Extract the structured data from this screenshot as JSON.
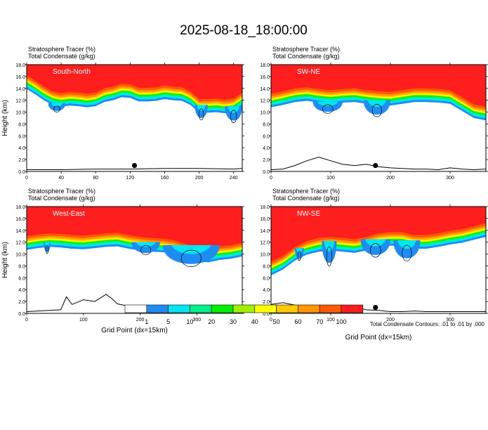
{
  "figure": {
    "title": "2025-08-18_18:00:00",
    "footnote": "Total Condensate Contours: .01 to .01 by .000"
  },
  "colors": {
    "levels": [
      "#ffffff",
      "#1e8cf0",
      "#00e6f0",
      "#00f08c",
      "#00f000",
      "#a0f000",
      "#ffff00",
      "#ffc800",
      "#ff9600",
      "#ff5a00",
      "#ff1e1e"
    ],
    "terrain": "#000000"
  },
  "chart_data": [
    {
      "type": "area",
      "panel": "South-North",
      "title_line1": "Stratosphere Tracer   (%)",
      "title_line2": "Total Condensate   (g/kg)",
      "ylabel": "Height (km)",
      "xlabel": "",
      "xlim": [
        0,
        250
      ],
      "ylim": [
        0,
        18
      ],
      "x_ticks": [
        "0",
        "40",
        "80",
        "120",
        "160",
        "200",
        "240"
      ],
      "y_ticks": [
        "0.0",
        "2.0",
        "4.0",
        "6.0",
        "8.0",
        "10.0",
        "12.0",
        "14.0",
        "16.0",
        "18.0"
      ],
      "tropopause_x": [
        0,
        10,
        20,
        30,
        40,
        50,
        60,
        70,
        80,
        90,
        100,
        110,
        120,
        130,
        140,
        150,
        160,
        170,
        180,
        190,
        200,
        210,
        220,
        230,
        240,
        250
      ],
      "tropopause_y": [
        15.5,
        14.6,
        13.6,
        12.8,
        12.5,
        12.7,
        12.6,
        12.4,
        12.6,
        13.3,
        13.6,
        14.1,
        14.0,
        13.4,
        13.4,
        13.5,
        13.8,
        13.6,
        13.5,
        12.8,
        11.5,
        11.5,
        11.6,
        11.4,
        11.6,
        12.6
      ],
      "cloud_blobs": [
        {
          "x0": 25,
          "x1": 45,
          "ytop": 11.5,
          "ybot": 10.0
        },
        {
          "x0": 195,
          "x1": 210,
          "ytop": 11.2,
          "ybot": 8.5
        },
        {
          "x0": 230,
          "x1": 250,
          "ytop": 11.0,
          "ybot": 8.0
        }
      ],
      "terrain_x": [
        0,
        40,
        80,
        120,
        160,
        200,
        240,
        250
      ],
      "terrain_y": [
        0.3,
        0.3,
        0.4,
        0.4,
        0.5,
        0.5,
        0.4,
        0.5
      ],
      "marker_x": 125,
      "marker_y": 1.0
    },
    {
      "type": "area",
      "panel": "SW-NE",
      "title_line1": "Stratosphere Tracer   (%)",
      "title_line2": "Total Condensate   (g/kg)",
      "ylabel": "",
      "xlabel": "",
      "xlim": [
        0,
        360
      ],
      "ylim": [
        0,
        18
      ],
      "x_ticks": [
        "0",
        "100",
        "200",
        "300"
      ],
      "y_ticks": [
        "0.0",
        "2.0",
        "4.0",
        "6.0",
        "8.0",
        "10.0",
        "12.0",
        "14.0",
        "16.0",
        "18.0"
      ],
      "tropopause_x": [
        0,
        20,
        40,
        60,
        80,
        100,
        120,
        140,
        160,
        180,
        200,
        220,
        240,
        260,
        280,
        300,
        320,
        340,
        360
      ],
      "tropopause_y": [
        12.4,
        12.8,
        13.3,
        13.5,
        13.2,
        13.0,
        13.2,
        13.3,
        13.0,
        12.8,
        12.7,
        13.0,
        13.3,
        13.3,
        13.2,
        13.0,
        11.8,
        10.6,
        10.2
      ],
      "cloud_blobs": [
        {
          "x0": 70,
          "x1": 120,
          "ytop": 11.8,
          "ybot": 9.7
        },
        {
          "x0": 155,
          "x1": 200,
          "ytop": 12.0,
          "ybot": 9.0
        }
      ],
      "terrain_x": [
        0,
        20,
        40,
        60,
        80,
        100,
        120,
        140,
        160,
        180,
        200,
        220,
        240,
        260,
        280,
        300,
        320,
        340,
        360
      ],
      "terrain_y": [
        0.3,
        0.4,
        1.0,
        1.8,
        2.4,
        1.8,
        1.2,
        1.0,
        1.2,
        0.8,
        0.6,
        0.5,
        0.4,
        0.4,
        0.3,
        0.6,
        0.4,
        0.3,
        0.4
      ],
      "marker_x": 175,
      "marker_y": 1.0
    },
    {
      "type": "area",
      "panel": "West-East",
      "title_line1": "Stratosphere Tracer   (%)",
      "title_line2": "Total Condensate   (g/kg)",
      "ylabel": "Height (km)",
      "xlabel": "Grid Point (dx=15km)",
      "xlim": [
        0,
        380
      ],
      "ylim": [
        0,
        18
      ],
      "x_ticks": [
        "0",
        "100",
        "200",
        "300"
      ],
      "y_ticks": [
        "0.0",
        "2.0",
        "4.0",
        "6.0",
        "8.0",
        "10.0",
        "12.0",
        "14.0",
        "16.0",
        "18.0"
      ],
      "tropopause_x": [
        0,
        20,
        40,
        60,
        80,
        100,
        120,
        140,
        160,
        180,
        200,
        220,
        240,
        260,
        280,
        300,
        320,
        340,
        360,
        380
      ],
      "tropopause_y": [
        12.3,
        12.6,
        12.8,
        12.7,
        12.5,
        12.4,
        12.6,
        12.8,
        12.9,
        12.5,
        12.2,
        12.0,
        11.9,
        11.6,
        11.0,
        10.4,
        10.2,
        10.6,
        10.8,
        11.2
      ],
      "cloud_blobs": [
        {
          "x0": 185,
          "x1": 235,
          "ytop": 12.0,
          "ybot": 9.8
        },
        {
          "x0": 240,
          "x1": 340,
          "ytop": 11.5,
          "ybot": 7.5
        },
        {
          "x0": 30,
          "x1": 42,
          "ytop": 12.0,
          "ybot": 10.0
        }
      ],
      "terrain_x": [
        0,
        20,
        40,
        60,
        70,
        80,
        100,
        120,
        140,
        150,
        160,
        180,
        200,
        220,
        240,
        260,
        280,
        300,
        320,
        340,
        380
      ],
      "terrain_y": [
        0.3,
        0.4,
        0.5,
        0.6,
        2.8,
        1.5,
        2.3,
        2.0,
        3.2,
        2.5,
        1.6,
        1.2,
        1.1,
        0.8,
        0.6,
        0.5,
        0.6,
        0.3,
        0.3,
        0.3,
        0.3
      ],
      "marker_x": 187,
      "marker_y": 1.0
    },
    {
      "type": "area",
      "panel": "NW-SE",
      "title_line1": "Stratosphere Tracer   (%)",
      "title_line2": "Total Condensate   (g/kg)",
      "ylabel": "",
      "xlabel": "Grid Point (dx=15km)",
      "xlim": [
        0,
        360
      ],
      "ylim": [
        0,
        18
      ],
      "x_ticks": [
        "0",
        "100",
        "200",
        "300"
      ],
      "y_ticks": [
        "0.0",
        "2.0",
        "4.0",
        "6.0",
        "8.0",
        "10.0",
        "12.0",
        "14.0",
        "16.0",
        "18.0"
      ],
      "tropopause_x": [
        0,
        20,
        40,
        60,
        80,
        100,
        120,
        140,
        160,
        180,
        200,
        220,
        240,
        260,
        280,
        300,
        320,
        340,
        360
      ],
      "tropopause_y": [
        8.0,
        9.0,
        10.5,
        11.5,
        12.0,
        12.2,
        12.0,
        11.8,
        12.2,
        12.8,
        13.0,
        13.0,
        12.5,
        12.5,
        12.8,
        13.2,
        13.5,
        14.0,
        14.5
      ],
      "cloud_blobs": [
        {
          "x0": 40,
          "x1": 55,
          "ytop": 11.0,
          "ybot": 8.8
        },
        {
          "x0": 85,
          "x1": 110,
          "ytop": 12.2,
          "ybot": 7.5
        },
        {
          "x0": 150,
          "x1": 200,
          "ytop": 12.5,
          "ybot": 9.2
        },
        {
          "x0": 205,
          "x1": 250,
          "ytop": 12.3,
          "ybot": 8.5
        }
      ],
      "terrain_x": [
        0,
        20,
        40,
        60,
        80,
        100,
        120,
        140,
        160,
        180,
        200,
        220,
        240,
        260,
        280,
        300,
        320,
        340,
        360
      ],
      "terrain_y": [
        1.5,
        1.8,
        1.4,
        1.2,
        1.0,
        1.1,
        0.9,
        1.0,
        0.6,
        0.5,
        0.3,
        0.3,
        0.4,
        0.3,
        0.3,
        0.3,
        0.3,
        0.3,
        0.3
      ],
      "marker_x": 175,
      "marker_y": 1.0
    }
  ],
  "colorbar": {
    "labels": [
      "1",
      "5",
      "10",
      "20",
      "30",
      "40",
      "50",
      "60",
      "70",
      "100"
    ]
  }
}
